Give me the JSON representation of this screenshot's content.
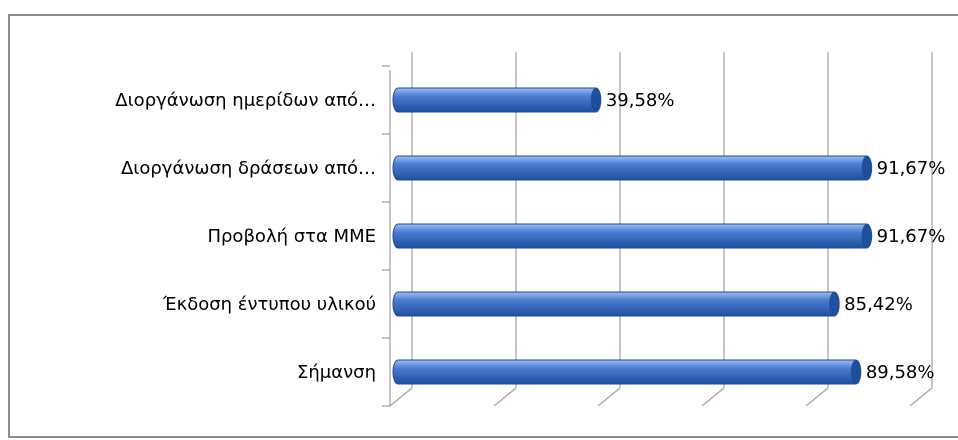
{
  "chart_data": {
    "type": "bar",
    "orientation": "horizontal",
    "style": "3d-cylinder",
    "categories": [
      "Διοργάνωση ημερίδων από…",
      "Διοργάνωση δράσεων από…",
      "Προβολή στα ΜΜΕ",
      "Έκδοση έντυπου υλικού",
      "Σήμανση"
    ],
    "values": [
      39.58,
      91.67,
      91.67,
      85.42,
      89.58
    ],
    "value_labels": [
      "39,58%",
      "91,67%",
      "91,67%",
      "85,42%",
      "89,58%"
    ],
    "xlim": [
      0,
      100
    ],
    "grid": true,
    "legend": "none",
    "title": "",
    "xlabel": "",
    "ylabel": "",
    "colors": {
      "bar": "#4a7bd0",
      "bar_dark": "#1f4f9c",
      "bar_light": "#9dbdf2",
      "grid": "#8c8c8c"
    }
  }
}
